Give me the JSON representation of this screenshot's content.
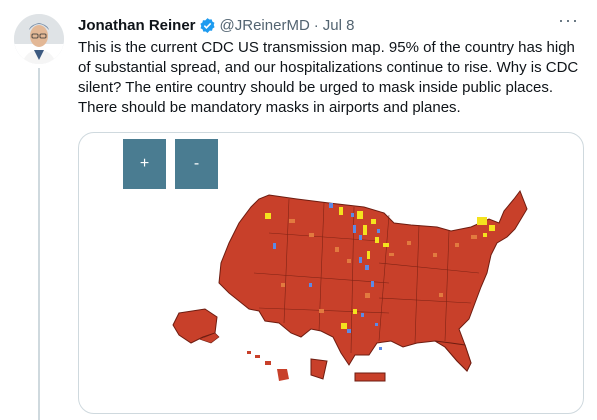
{
  "tweet": {
    "author_name": "Jonathan Reiner",
    "handle": "@JReinerMD",
    "separator": "·",
    "date": "Jul 8",
    "more_label": "···",
    "text": "This is the current CDC US transmission map. 95% of the country has high of substantial spread, and our hospitalizations continue to rise. Why is CDC silent? The entire country should be urged to mask inside public places. There should be mandatory masks in airports and planes."
  },
  "map_controls": {
    "zoom_in_label": "+",
    "zoom_out_label": "-"
  },
  "colors": {
    "high": "#c8402a",
    "substantial": "#e27a3f",
    "moderate": "#f4e21e",
    "low": "#5c8ae6",
    "button": "#4a7c91",
    "verified": "#1d9bf0"
  },
  "icons": {
    "verified": "verified-badge-icon",
    "more": "more-options-icon"
  }
}
